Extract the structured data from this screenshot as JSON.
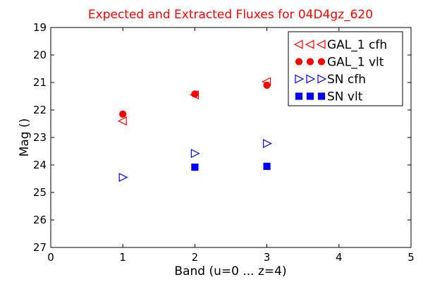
{
  "chart_data": {
    "type": "scatter",
    "title": "Expected and Extracted Fluxes for 04D4gz_620",
    "title_color": "#ff0000",
    "xlabel": "Band (u=0 ... z=4)",
    "ylabel": "Mag ()",
    "xlim": [
      0,
      5
    ],
    "ylim": [
      19,
      27
    ],
    "y_inverted": true,
    "grid": false,
    "legend_position": "top-right",
    "x_ticks": [
      "0",
      "1",
      "2",
      "3",
      "4",
      "5"
    ],
    "y_ticks": [
      "19",
      "20",
      "21",
      "22",
      "23",
      "24",
      "25",
      "26",
      "27"
    ],
    "series": [
      {
        "name": "GAL_1 cfh",
        "marker": "triangle-left",
        "filled": false,
        "color": "#ff0000",
        "points": [
          {
            "x": 1,
            "y": 22.4
          },
          {
            "x": 2,
            "y": 21.45
          },
          {
            "x": 3,
            "y": 20.97
          }
        ]
      },
      {
        "name": "GAL_1 vlt",
        "marker": "circle",
        "filled": true,
        "color": "#ff0000",
        "points": [
          {
            "x": 1,
            "y": 22.15
          },
          {
            "x": 2,
            "y": 21.42
          },
          {
            "x": 3,
            "y": 21.1
          }
        ]
      },
      {
        "name": "SN cfh",
        "marker": "triangle-right",
        "filled": false,
        "color": "#0000ff",
        "points": [
          {
            "x": 1,
            "y": 24.45
          },
          {
            "x": 2,
            "y": 23.58
          },
          {
            "x": 3,
            "y": 23.22
          }
        ]
      },
      {
        "name": "SN vlt",
        "marker": "square",
        "filled": true,
        "color": "#0000ff",
        "points": [
          {
            "x": 2,
            "y": 24.08
          },
          {
            "x": 3,
            "y": 24.05
          }
        ]
      }
    ]
  }
}
